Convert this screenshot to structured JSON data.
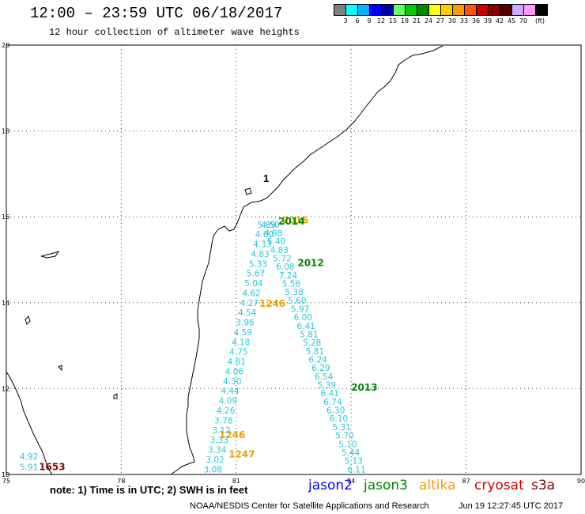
{
  "header": {
    "title": "12:00 – 23:59 UTC 06/18/2017",
    "subtitle": "12 hour collection of altimeter wave heights"
  },
  "legend": {
    "colors": [
      "#808080",
      "#00ffff",
      "#00b4ff",
      "#0000ff",
      "#0000a0",
      "#66ff66",
      "#00cc00",
      "#008800",
      "#ffff00",
      "#ffcc00",
      "#ff9900",
      "#ff5500",
      "#cc0000",
      "#880000",
      "#550000",
      "#ccaaff",
      "#ff99ff",
      "#000000"
    ],
    "labels": [
      "3",
      "6",
      "9",
      "12",
      "15",
      "18",
      "21",
      "24",
      "27",
      "30",
      "33",
      "36",
      "39",
      "42",
      "45",
      "70",
      "(ft)"
    ]
  },
  "axes": {
    "lon_ticks": [
      "75",
      "78",
      "81",
      "84",
      "87",
      "90"
    ],
    "lat_ticks": [
      "20",
      "18",
      "16",
      "14",
      "12",
      "10"
    ]
  },
  "tracks": [
    {
      "satellite": "jason2",
      "color": "#22c8dc",
      "start_lon": 81.55,
      "start_lat": 15.75,
      "end_lon": 80.15,
      "end_lat": 10.05,
      "values": [
        "5.89",
        "4.00",
        "4.33",
        "4.83",
        "5.33",
        "5.67",
        "5.04",
        "4.62",
        "4.27",
        "4.54",
        "3.96",
        "4.59",
        "4.18",
        "4.75",
        "4.81",
        "4.06",
        "4.30",
        "4.44",
        "4.09",
        "4.26",
        "3.78",
        "3.12",
        "3.33",
        "3.34",
        "3.02",
        "3.08"
      ]
    },
    {
      "satellite": "jason2",
      "color": "#22c8dc",
      "start_lon": 81.65,
      "start_lat": 15.75,
      "end_lon": 83.9,
      "end_lat": 10.05,
      "values": [
        "4.50",
        "4.98",
        "5.40",
        "4.83",
        "5.72",
        "6.08",
        "7.24",
        "5.58",
        "5.38",
        "5.60",
        "5.97",
        "6.00",
        "6.41",
        "5.81",
        "5.28",
        "5.81",
        "6.24",
        "6.29",
        "6.54",
        "5.39",
        "6.41",
        "6.74",
        "6.30",
        "6.10",
        "5.31",
        "5.70",
        "5.10",
        "5.44",
        "5.13",
        "6.11"
      ]
    },
    {
      "satellite": "jason2",
      "color": "#22c8dc",
      "start_lon": 75.35,
      "start_lat": 10.35,
      "end_lon": 75.35,
      "end_lat": 10.1,
      "values": [
        "4.92",
        "5.91"
      ]
    }
  ],
  "time_labels": [
    {
      "text": "2016",
      "satellite": "altika",
      "color": "#e8a000",
      "lon": 82.2,
      "lat": 15.85
    },
    {
      "text": "2014",
      "satellite": "jason3",
      "color": "#008800",
      "lon": 82.1,
      "lat": 15.82
    },
    {
      "text": "2012",
      "satellite": "jason3",
      "color": "#008800",
      "lon": 82.6,
      "lat": 14.85
    },
    {
      "text": "1246",
      "satellite": "altika",
      "color": "#e8a000",
      "lon": 81.6,
      "lat": 13.9
    },
    {
      "text": "2013",
      "satellite": "jason3",
      "color": "#008800",
      "lon": 84.0,
      "lat": 11.95
    },
    {
      "text": "1246",
      "satellite": "altika",
      "color": "#e8a000",
      "lon": 80.55,
      "lat": 10.85
    },
    {
      "text": "1247",
      "satellite": "altika",
      "color": "#e8a000",
      "lon": 80.8,
      "lat": 10.4
    },
    {
      "text": "1653",
      "satellite": "cryosat",
      "color": "#880000",
      "lon": 75.85,
      "lat": 10.1
    }
  ],
  "island_label": "1",
  "footer": {
    "note": "note: 1) Time is in UTC; 2) SWH is in feet",
    "satellites": [
      {
        "name": "jason2",
        "color": "#0000ff"
      },
      {
        "name": "jason3",
        "color": "#008800"
      },
      {
        "name": "altika",
        "color": "#ff9900"
      },
      {
        "name": "cryosat",
        "color": "#cc0000"
      },
      {
        "name": "s3a",
        "color": "#880000"
      }
    ],
    "credit": "NOAA/NESDIS Center for Satellite Applications and Research",
    "timestamp": "Jun 19 12:27:45 UTC 2017"
  }
}
